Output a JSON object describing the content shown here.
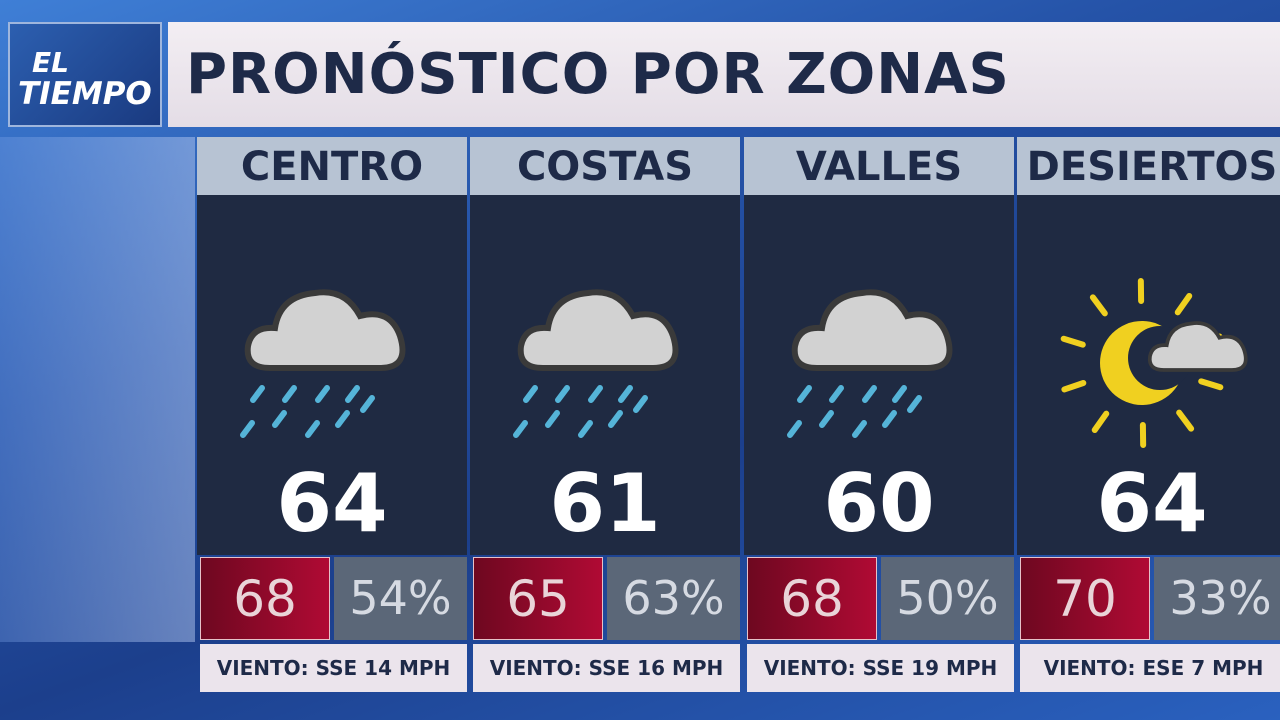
{
  "logo": {
    "line1": "EL",
    "line2": "TIEMPO"
  },
  "header": {
    "title": "PRONÓSTICO POR ZONAS"
  },
  "zones": [
    {
      "name": "CENTRO",
      "temp": "64",
      "high": "68",
      "humidity": "54%",
      "wind": "VIENTO: SSE 14 MPH"
    },
    {
      "name": "COSTAS",
      "temp": "61",
      "high": "65",
      "humidity": "63%",
      "wind": "VIENTO: SSE 16 MPH"
    },
    {
      "name": "VALLES",
      "temp": "60",
      "high": "68",
      "humidity": "50%",
      "wind": "VIENTO: SSE 19 MPH"
    },
    {
      "name": "DESIERTOS",
      "temp": "64",
      "high": "70",
      "humidity": "33%",
      "wind": "VIENTO: ESE 7 MPH"
    }
  ]
}
